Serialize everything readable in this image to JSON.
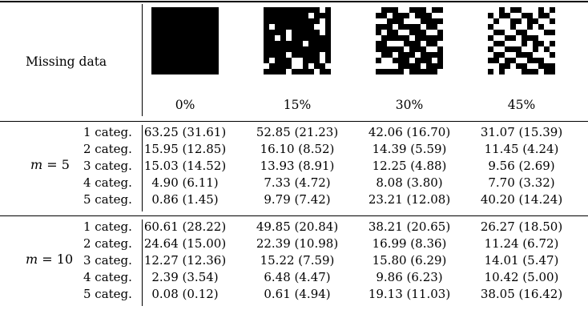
{
  "header": {
    "missing_label": "Missing data",
    "percentages": [
      "0%",
      "15%",
      "30%",
      "45%"
    ],
    "pattern_icons": [
      "mask-0pct-icon",
      "mask-15pct-icon",
      "mask-30pct-icon",
      "mask-45pct-icon"
    ]
  },
  "groups": [
    {
      "m_var": "m",
      "m_eq": "= 5",
      "categories": [
        "1 categ.",
        "2 categ.",
        "3 categ.",
        "4 categ.",
        "5 categ."
      ],
      "rows": [
        [
          "63.25 (31.61)",
          "52.85 (21.23)",
          "42.06 (16.70)",
          "31.07 (15.39)"
        ],
        [
          "15.95 (12.85)",
          "16.10 (8.52)",
          "14.39 (5.59)",
          "11.45 (4.24)"
        ],
        [
          "15.03 (14.52)",
          "13.93 (8.91)",
          "12.25 (4.88)",
          "9.56 (2.69)"
        ],
        [
          "4.90 (6.11)",
          "7.33 (4.72)",
          "8.08 (3.80)",
          "7.70 (3.32)"
        ],
        [
          "0.86 (1.45)",
          "9.79 (7.42)",
          "23.21 (12.08)",
          "40.20 (14.24)"
        ]
      ]
    },
    {
      "m_var": "m",
      "m_eq": "= 10",
      "categories": [
        "1 categ.",
        "2 categ.",
        "3 categ.",
        "4 categ.",
        "5 categ."
      ],
      "rows": [
        [
          "60.61 (28.22)",
          "49.85 (20.84)",
          "38.21 (20.65)",
          "26.27 (18.50)"
        ],
        [
          "24.64 (15.00)",
          "22.39 (10.98)",
          "16.99 (8.36)",
          "11.24 (6.72)"
        ],
        [
          "12.27 (12.36)",
          "15.22 (7.59)",
          "15.80 (6.29)",
          "14.01 (5.47)"
        ],
        [
          "2.39 (3.54)",
          "6.48 (4.47)",
          "9.86 (6.23)",
          "10.42 (5.00)"
        ],
        [
          "0.08 (0.12)",
          "0.61 (4.94)",
          "19.13 (11.03)",
          "38.05 (16.42)"
        ]
      ]
    }
  ]
}
